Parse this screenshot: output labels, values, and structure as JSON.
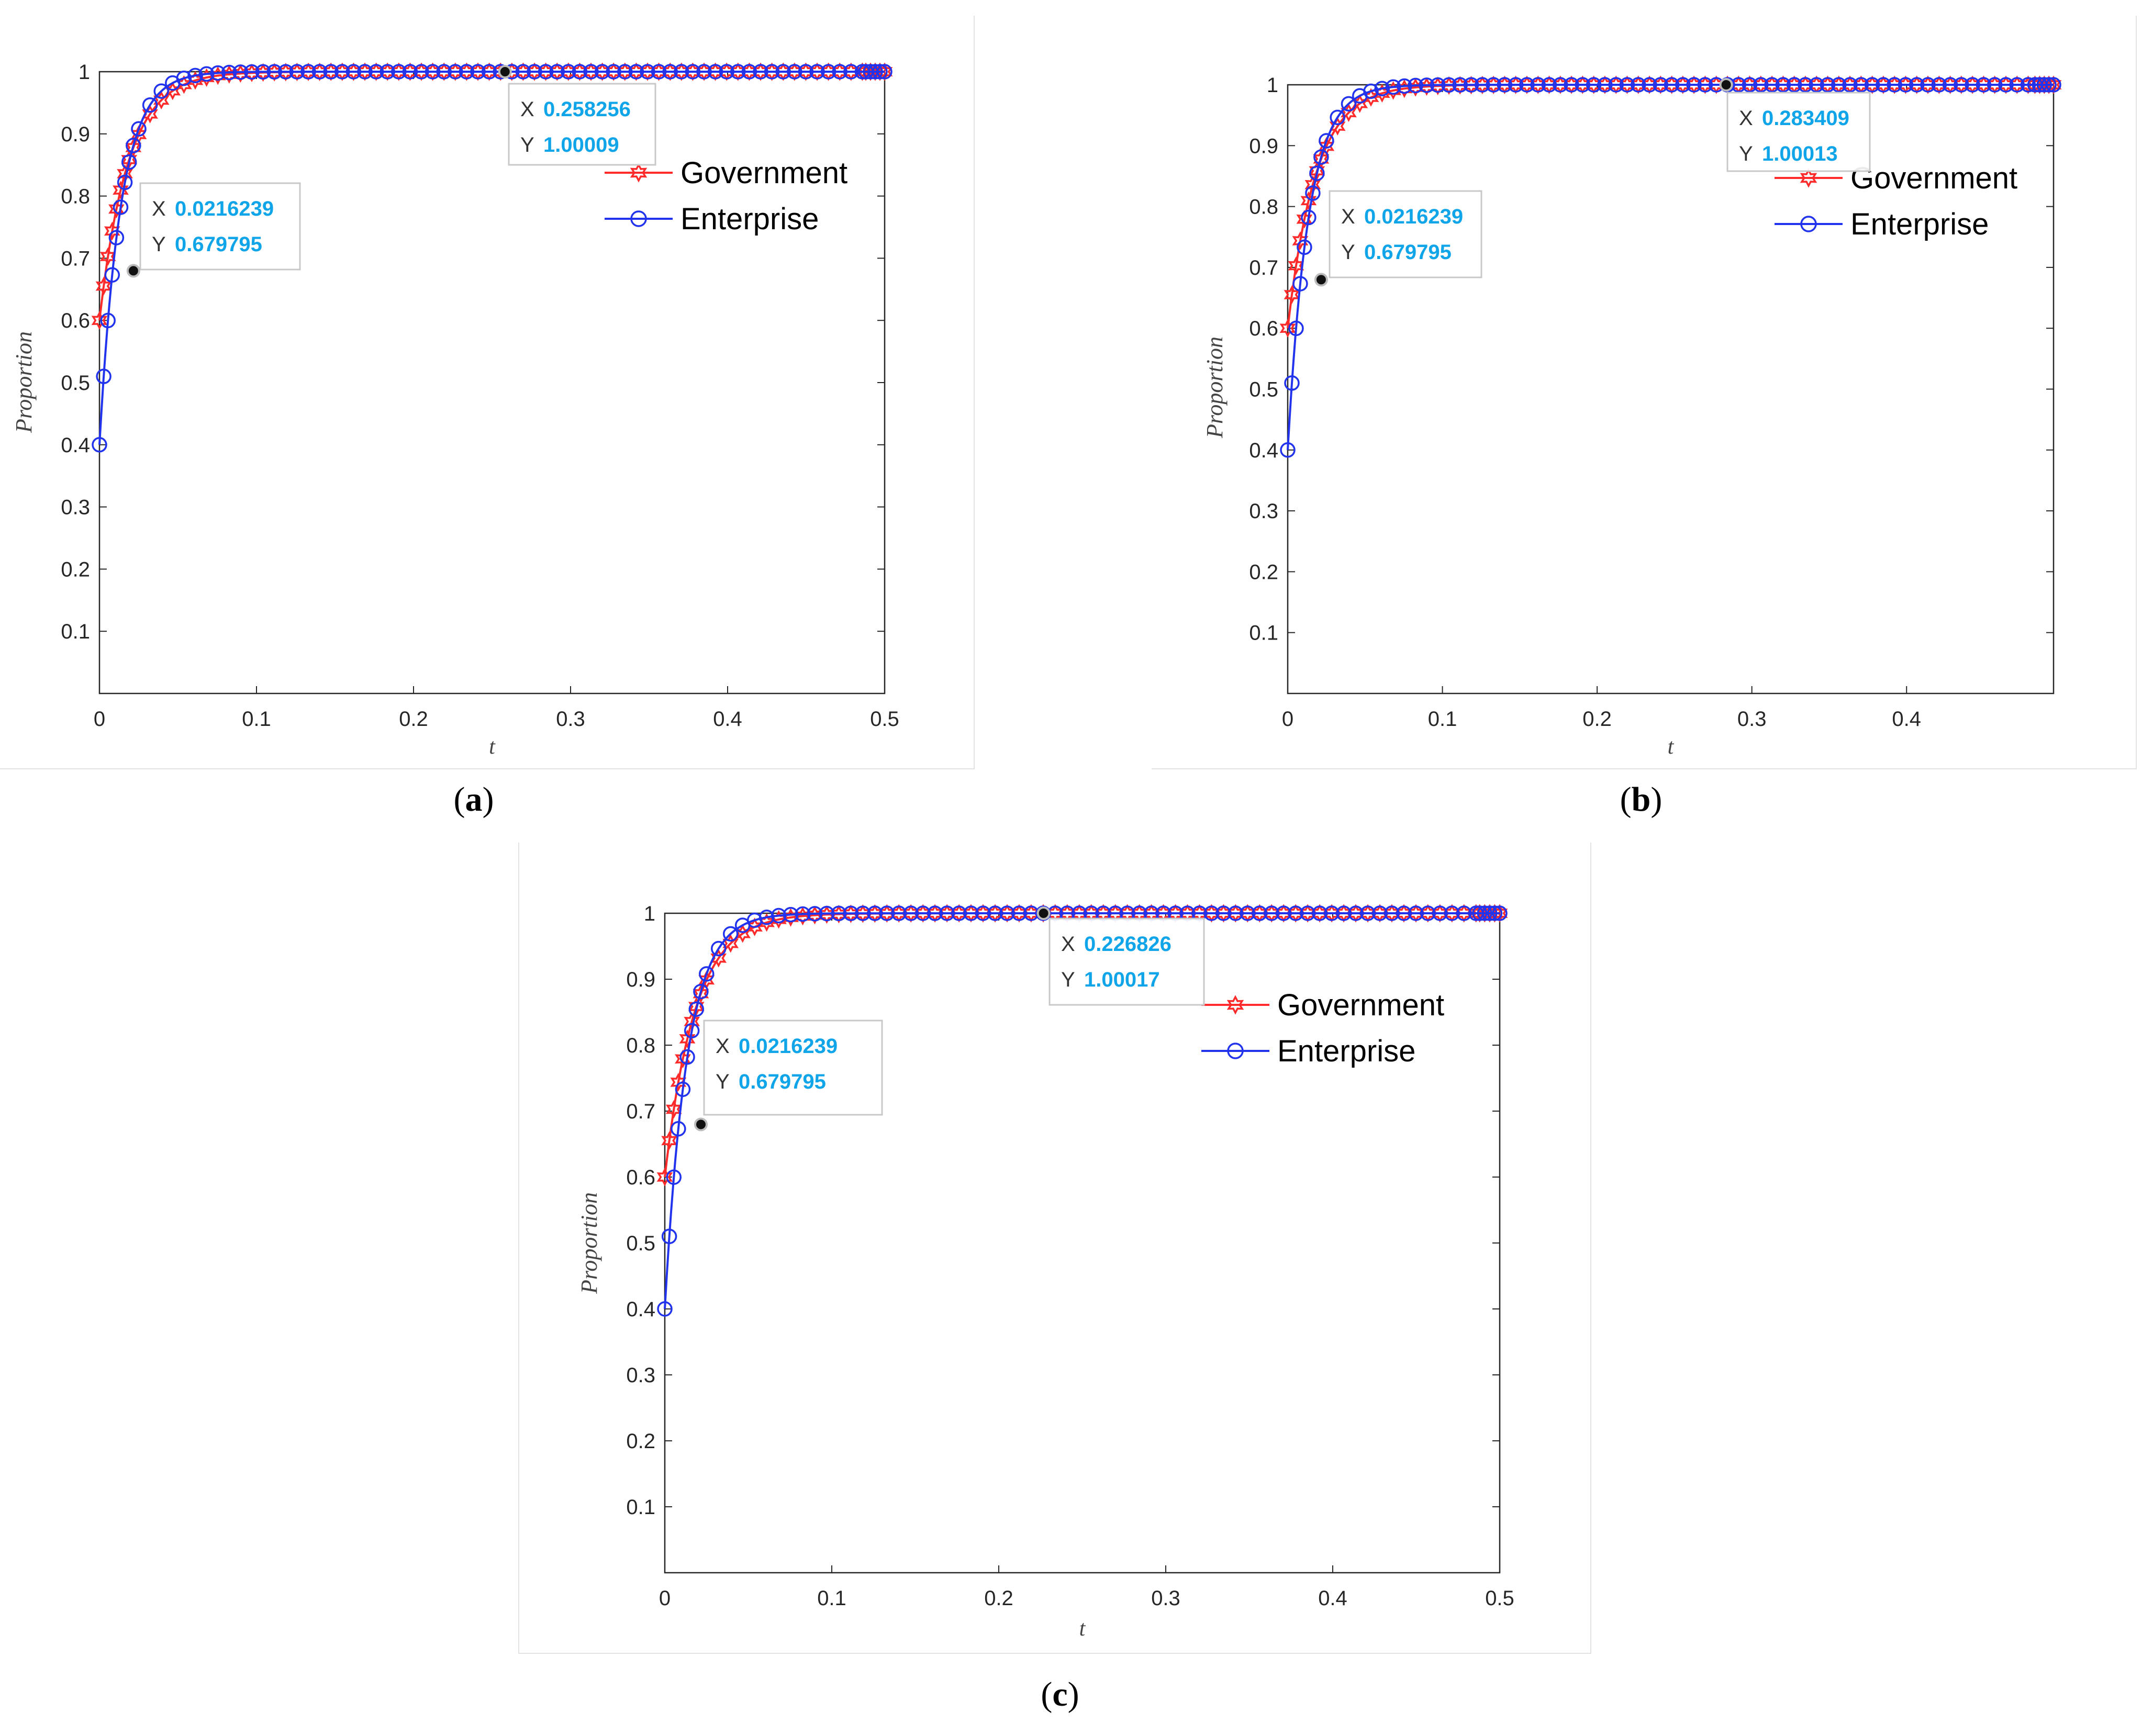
{
  "chart_data": [
    {
      "panel": "a",
      "type": "line",
      "xlabel": "t",
      "ylabel": "Proportion",
      "xlim": [
        0,
        0.5
      ],
      "ylim": [
        0,
        1
      ],
      "xticks": [
        "0",
        "0.1",
        "0.2",
        "0.3",
        "0.4",
        "0.5"
      ],
      "yticks": [
        "0.1",
        "0.2",
        "0.3",
        "0.4",
        "0.5",
        "0.6",
        "0.7",
        "0.8",
        "0.9",
        "1"
      ],
      "legend": {
        "position": "top-right",
        "entries": [
          "Government",
          "Enterprise"
        ]
      },
      "series": [
        {
          "name": "Government",
          "color": "#ff2a2a",
          "marker": "hexagram",
          "start": 0.6,
          "rate": 55
        },
        {
          "name": "Enterprise",
          "color": "#2233ee",
          "marker": "circle",
          "start": 0.4,
          "rate": 75
        }
      ],
      "datatips": [
        {
          "x_label": "X",
          "x_value": "0.0216239",
          "y_label": "Y",
          "y_value": "0.679795",
          "x": 0.0216239,
          "y": 0.679795
        },
        {
          "x_label": "X",
          "x_value": "0.258256",
          "y_label": "Y",
          "y_value": "1.00009",
          "x": 0.258256,
          "y": 1.00009
        }
      ]
    },
    {
      "panel": "b",
      "type": "line",
      "xlabel": "t",
      "ylabel": "Proportion",
      "xlim": [
        0,
        0.495
      ],
      "ylim": [
        0,
        1
      ],
      "xticks": [
        "0",
        "0.1",
        "0.2",
        "0.3",
        "0.4"
      ],
      "yticks": [
        "0.1",
        "0.2",
        "0.3",
        "0.4",
        "0.5",
        "0.6",
        "0.7",
        "0.8",
        "0.9",
        "1"
      ],
      "legend": {
        "position": "top-right",
        "entries": [
          "Government",
          "Enterprise"
        ]
      },
      "series": [
        {
          "name": "Government",
          "color": "#ff2a2a",
          "marker": "hexagram",
          "start": 0.6,
          "rate": 55
        },
        {
          "name": "Enterprise",
          "color": "#2233ee",
          "marker": "circle",
          "start": 0.4,
          "rate": 75
        }
      ],
      "datatips": [
        {
          "x_label": "X",
          "x_value": "0.0216239",
          "y_label": "Y",
          "y_value": "0.679795",
          "x": 0.0216239,
          "y": 0.679795
        },
        {
          "x_label": "X",
          "x_value": "0.283409",
          "y_label": "Y",
          "y_value": "1.00013",
          "x": 0.283409,
          "y": 1.00013
        }
      ]
    },
    {
      "panel": "c",
      "type": "line",
      "xlabel": "t",
      "ylabel": "Proportion",
      "xlim": [
        0,
        0.5
      ],
      "ylim": [
        0,
        1
      ],
      "xticks": [
        "0",
        "0.1",
        "0.2",
        "0.3",
        "0.4",
        "0.5"
      ],
      "yticks": [
        "0.1",
        "0.2",
        "0.3",
        "0.4",
        "0.5",
        "0.6",
        "0.7",
        "0.8",
        "0.9",
        "1"
      ],
      "legend": {
        "position": "top-right",
        "entries": [
          "Government",
          "Enterprise"
        ]
      },
      "series": [
        {
          "name": "Government",
          "color": "#ff2a2a",
          "marker": "hexagram",
          "start": 0.6,
          "rate": 55
        },
        {
          "name": "Enterprise",
          "color": "#2233ee",
          "marker": "circle",
          "start": 0.4,
          "rate": 75
        }
      ],
      "datatips": [
        {
          "x_label": "X",
          "x_value": "0.0216239",
          "y_label": "Y",
          "y_value": "0.679795",
          "x": 0.0216239,
          "y": 0.679795
        },
        {
          "x_label": "X",
          "x_value": "0.226826",
          "y_label": "Y",
          "y_value": "1.00017",
          "x": 0.226826,
          "y": 1.00017
        }
      ]
    }
  ],
  "panel_labels": {
    "a": "a",
    "b": "b",
    "c": "c"
  },
  "paren_open": "(",
  "paren_close": ")"
}
